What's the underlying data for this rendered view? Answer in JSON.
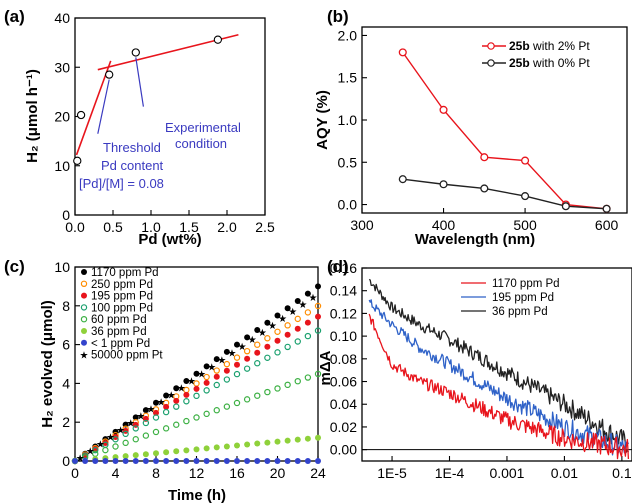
{
  "chart_data": [
    {
      "panel": "(a)",
      "type": "scatter",
      "xlabel": "Pd (wt%)",
      "ylabel": "H₂ (μmol h⁻¹)",
      "xlim": [
        0,
        2.5
      ],
      "ylim": [
        0,
        40
      ],
      "xticks": [
        "0.0",
        "0.5",
        "1.0",
        "1.5",
        "2.0",
        "2.5"
      ],
      "yticks": [
        "0",
        "10",
        "20",
        "30",
        "40"
      ],
      "series": [
        {
          "x": [
            0.03,
            0.08,
            0.45,
            0.8,
            1.88
          ],
          "y": [
            11,
            20.3,
            28.5,
            33,
            35.6
          ]
        }
      ],
      "fit_lines": [
        {
          "x": [
            0.02,
            0.47
          ],
          "y": [
            12.2,
            31.3
          ]
        },
        {
          "x": [
            0.3,
            2.15
          ],
          "y": [
            29.5,
            36.6
          ]
        }
      ],
      "annotations": [
        "Threshold",
        "Pd content",
        "[Pd]/[M]  = 0.08",
        "Experimental",
        "condition"
      ]
    },
    {
      "panel": "(b)",
      "type": "line",
      "xlabel": "Wavelength (nm)",
      "ylabel": "AQY (%)",
      "xlim": [
        300,
        625
      ],
      "ylim": [
        -0.1,
        2.1
      ],
      "xticks": [
        "300",
        "400",
        "500",
        "600"
      ],
      "yticks": [
        "0.0",
        "0.5",
        "1.0",
        "1.5",
        "2.0"
      ],
      "legend": "top-right",
      "series": [
        {
          "name": "25b with 2% Pt",
          "name_bold": "25b",
          "name_rest": " with 2% Pt",
          "color": "#e8141c",
          "x": [
            350,
            400,
            450,
            500,
            550,
            600
          ],
          "y": [
            1.8,
            1.12,
            0.56,
            0.52,
            0.0,
            -0.05
          ]
        },
        {
          "name": "25b with 0% Pt",
          "name_bold": "25b",
          "name_rest": " with 0% Pt",
          "color": "#222222",
          "x": [
            350,
            400,
            450,
            500,
            550,
            600
          ],
          "y": [
            0.3,
            0.24,
            0.19,
            0.1,
            -0.02,
            -0.05
          ]
        }
      ]
    },
    {
      "panel": "(c)",
      "type": "scatter",
      "xlabel": "Time (h)",
      "ylabel": "H₂ evolved (μmol)",
      "xlim": [
        0,
        24
      ],
      "ylim": [
        0,
        10
      ],
      "xticks": [
        "0",
        "4",
        "8",
        "12",
        "16",
        "20",
        "24"
      ],
      "yticks": [
        "0",
        "2",
        "4",
        "6",
        "8",
        "10"
      ],
      "legend": "top-left",
      "series": [
        {
          "name": "1170 ppm Pd",
          "color": "#000000",
          "marker": "dot",
          "rate": 0.375
        },
        {
          "name": "250 ppm Pd",
          "color": "#ff8c00",
          "marker": "ring",
          "rate": 0.333
        },
        {
          "name": "195 ppm Pd",
          "color": "#e8141c",
          "marker": "dot",
          "rate": 0.31
        },
        {
          "name": "100 ppm Pd",
          "color": "#1aa06e",
          "marker": "ring",
          "rate": 0.28
        },
        {
          "name": "60 ppm Pd",
          "color": "#3cb043",
          "marker": "ring",
          "rate": 0.187
        },
        {
          "name": "36 ppm Pd",
          "color": "#8fd13a",
          "marker": "dot",
          "rate": 0.05
        },
        {
          "name": "< 1 ppm Pd",
          "color": "#3344cc",
          "marker": "dot",
          "rate": 0.0
        },
        {
          "name": "50000 ppm Pt",
          "color": "#000000",
          "marker": "star",
          "rate": 0.36
        }
      ]
    },
    {
      "panel": "(d)",
      "type": "line",
      "xlabel": "",
      "ylabel": "mΔA",
      "xscale": "log",
      "xlim": [
        3e-06,
        0.15
      ],
      "ylim": [
        -0.01,
        0.16
      ],
      "xticks": [
        "1E-5",
        "1E-4",
        "0.001",
        "0.01",
        "0.1"
      ],
      "yticks": [
        "0.00",
        "0.02",
        "0.04",
        "0.06",
        "0.08",
        "0.10",
        "0.12",
        "0.14",
        "0.16"
      ],
      "legend": "top-center",
      "series": [
        {
          "name": "1170 ppm Pd",
          "color": "#e8141c",
          "x": [
            4e-06,
            1e-05,
            3e-05,
            0.0001,
            0.001,
            0.01,
            0.13
          ],
          "y": [
            0.118,
            0.075,
            0.06,
            0.05,
            0.026,
            0.01,
            0.0
          ]
        },
        {
          "name": "195 ppm Pd",
          "color": "#2f62c8",
          "x": [
            4e-06,
            1e-05,
            3e-05,
            0.0001,
            0.001,
            0.01,
            0.13
          ],
          "y": [
            0.13,
            0.11,
            0.09,
            0.075,
            0.045,
            0.02,
            0.0
          ]
        },
        {
          "name": "36 ppm Pd",
          "color": "#222222",
          "x": [
            4e-06,
            1e-05,
            3e-05,
            0.0001,
            0.001,
            0.01,
            0.13
          ],
          "y": [
            0.15,
            0.125,
            0.11,
            0.097,
            0.068,
            0.04,
            0.005
          ]
        }
      ]
    }
  ]
}
